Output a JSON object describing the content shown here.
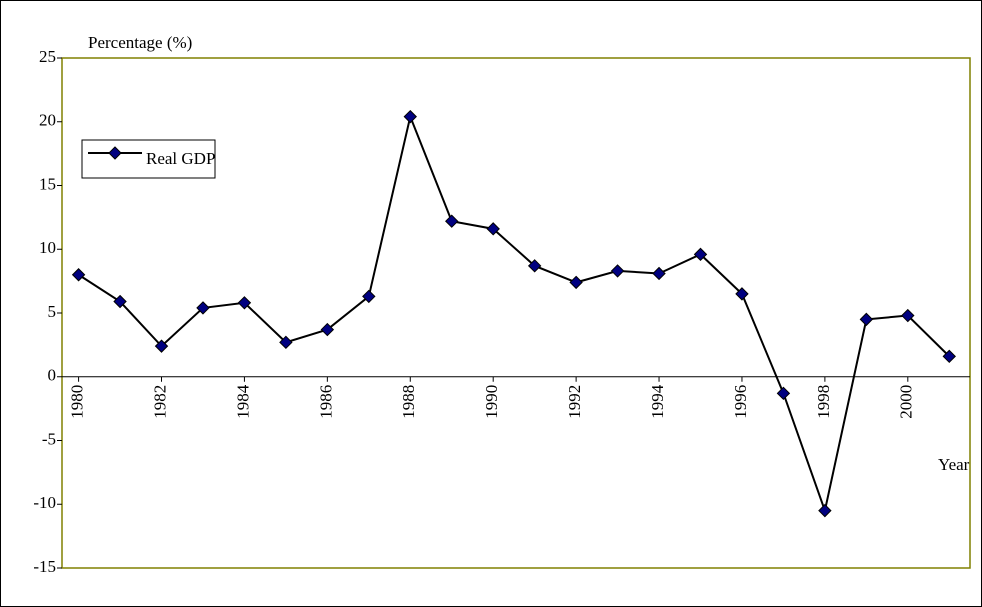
{
  "chart_data": {
    "type": "line",
    "ylabel": "Percentage (%)",
    "xlabel": "Year",
    "x": [
      1980,
      1981,
      1982,
      1983,
      1984,
      1985,
      1986,
      1987,
      1988,
      1989,
      1990,
      1991,
      1992,
      1993,
      1994,
      1995,
      1996,
      1997,
      1998,
      1999,
      2000,
      2001
    ],
    "series": [
      {
        "name": "Real GDP",
        "color": "#000080",
        "values": [
          8.0,
          5.9,
          2.4,
          5.4,
          5.8,
          2.7,
          3.7,
          6.3,
          20.4,
          12.2,
          11.6,
          8.7,
          7.4,
          8.3,
          8.1,
          9.6,
          6.5,
          -1.3,
          -10.5,
          4.5,
          4.8,
          1.6
        ]
      }
    ],
    "xlim": [
      1979.6,
      2001.5
    ],
    "xticks": [
      1980,
      1982,
      1984,
      1986,
      1988,
      1990,
      1992,
      1994,
      1996,
      1998,
      2000
    ],
    "ylim": [
      -15,
      25
    ],
    "yticks": [
      -15,
      -10,
      -5,
      0,
      5,
      10,
      15,
      20,
      25
    ],
    "frame_color": "#808000",
    "legend": "upper left"
  }
}
